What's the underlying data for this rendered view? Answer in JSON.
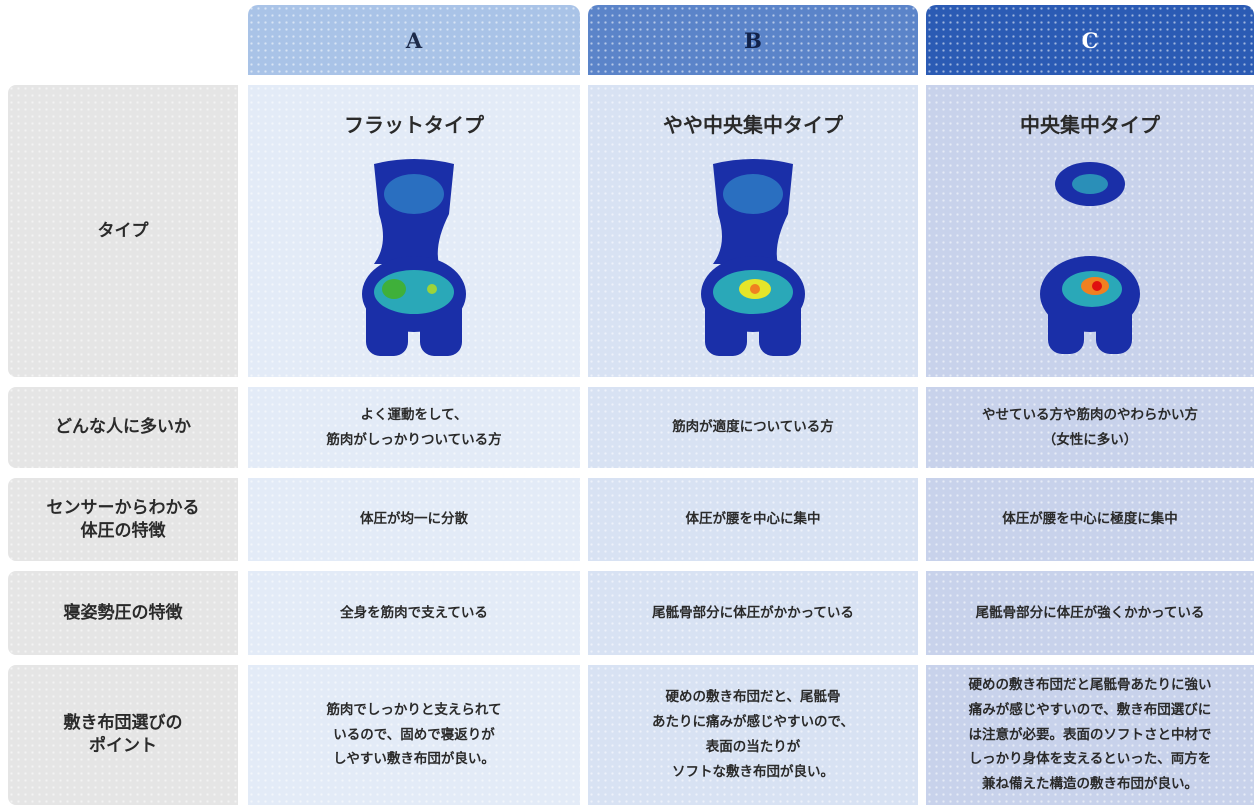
{
  "table": {
    "columns": [
      "A",
      "B",
      "C"
    ],
    "rows": [
      {
        "label": [
          "タイプ"
        ],
        "cells": [
          [
            "フラットタイプ"
          ],
          [
            "やや中央集中タイプ"
          ],
          [
            "中央集中タイプ"
          ]
        ]
      },
      {
        "label": [
          "どんな人に多いか"
        ],
        "cells": [
          [
            "よく運動をして、",
            "筋肉がしっかりついている方"
          ],
          [
            "筋肉が適度についている方"
          ],
          [
            "やせている方や筋肉のやわらかい方",
            "（女性に多い）"
          ]
        ]
      },
      {
        "label": [
          "センサーからわかる",
          "体圧の特徴"
        ],
        "cells": [
          [
            "体圧が均一に分散"
          ],
          [
            "体圧が腰を中心に集中"
          ],
          [
            "体圧が腰を中心に極度に集中"
          ]
        ]
      },
      {
        "label": [
          "寝姿勢圧の特徴"
        ],
        "cells": [
          [
            "全身を筋肉で支えている"
          ],
          [
            "尾骶骨部分に体圧がかかっている"
          ],
          [
            "尾骶骨部分に体圧が強くかかっている"
          ]
        ]
      },
      {
        "label": [
          "敷き布団選びの",
          "ポイント"
        ],
        "cells": [
          [
            "筋肉でしっかりと支えられて",
            "いるので、固めで寝返りが",
            "しやすい敷き布団が良い。"
          ],
          [
            "硬めの敷き布団だと、尾骶骨",
            "あたりに痛みが感じやすいので、",
            "表面の当たりが",
            "ソフトな敷き布団が良い。"
          ],
          [
            "硬めの敷き布団だと尾骶骨あたりに強い",
            "痛みが感じやすいので、敷き布団選びに",
            "は注意が必要。表面のソフトさと中材で",
            "しっかり身体を支えるといった、両方を",
            "兼ね備えた構造の敷き布団が良い。"
          ]
        ]
      }
    ]
  }
}
